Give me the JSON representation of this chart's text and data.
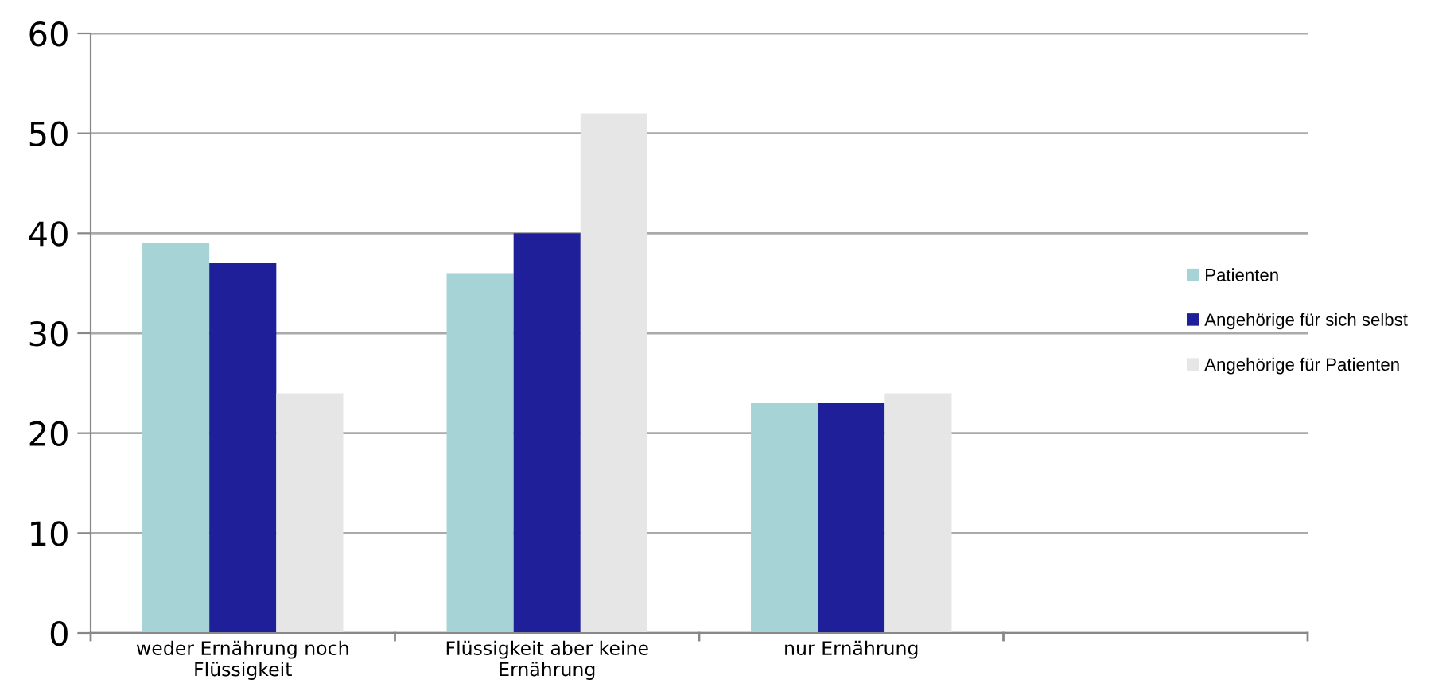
{
  "chart_data": {
    "type": "bar",
    "categories": [
      "weder Ernährung noch\nFlüssigkeit",
      "Flüssigkeit aber keine\nErnährung",
      "nur Ernährung",
      null
    ],
    "series": [
      {
        "name": "Patienten",
        "color": "#a6d3d6",
        "values": [
          39,
          36,
          23,
          null
        ]
      },
      {
        "name": "Angehörige für sich selbst",
        "color": "#1f1f99",
        "values": [
          37,
          40,
          23,
          null
        ]
      },
      {
        "name": "Angehörige für Patienten",
        "color": "#e6e6e6",
        "values": [
          24,
          52,
          24,
          null
        ]
      }
    ],
    "ylim": [
      0,
      60
    ],
    "yticks": [
      0,
      10,
      20,
      30,
      40,
      50,
      60
    ],
    "grid": "y",
    "legend": "right"
  }
}
